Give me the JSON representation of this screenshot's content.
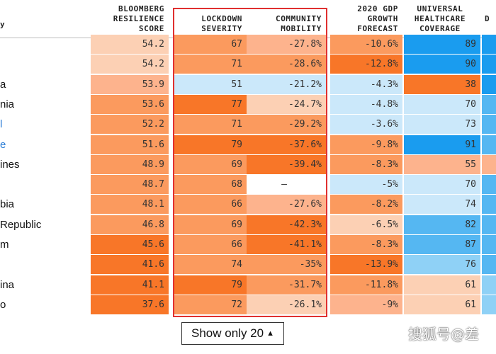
{
  "headers": {
    "country": "y",
    "score": [
      "BLOOMBERG",
      "RESILIENCE",
      "SCORE"
    ],
    "lockdown": [
      "LOCKDOWN",
      "SEVERITY"
    ],
    "mobility": [
      "COMMUNITY",
      "MOBILITY"
    ],
    "gdp": [
      "2020 GDP",
      "GROWTH",
      "FORECAST"
    ],
    "healthcare": [
      "UNIVERSAL",
      "HEALTHCARE",
      "COVERAGE"
    ],
    "partial": [
      "D"
    ]
  },
  "colors": {
    "peach_light": "#fcd0b4",
    "peach": "#fdb38d",
    "orange": "#fb9a5e",
    "orange_dark": "#f87628",
    "blue_light": "#cbe8fa",
    "blue_mid": "#8fd1f6",
    "blue": "#55b7f2",
    "blue_dark": "#1a9cef",
    "blank": "#ffffff",
    "highlight_box": "#e03030"
  },
  "rows": [
    {
      "name": "",
      "link": false,
      "score": "54.2",
      "score_c": "peach_light",
      "lockdown": "67",
      "lockdown_c": "orange",
      "mobility": "-27.8%",
      "mobility_c": "peach",
      "gdp": "-10.6%",
      "gdp_c": "orange",
      "health": "89",
      "health_c": "blue_dark",
      "partial_c": "blue_dark"
    },
    {
      "name": "",
      "link": false,
      "score": "54.2",
      "score_c": "peach_light",
      "lockdown": "71",
      "lockdown_c": "orange",
      "mobility": "-28.6%",
      "mobility_c": "orange",
      "gdp": "-12.8%",
      "gdp_c": "orange_dark",
      "health": "90",
      "health_c": "blue_dark",
      "partial_c": "blue_dark"
    },
    {
      "name": "a",
      "link": false,
      "score": "53.9",
      "score_c": "peach",
      "lockdown": "51",
      "lockdown_c": "blue_light",
      "mobility": "-21.2%",
      "mobility_c": "blue_light",
      "gdp": "-4.3%",
      "gdp_c": "blue_light",
      "health": "38",
      "health_c": "orange_dark",
      "partial_c": "blue_dark"
    },
    {
      "name": "nia",
      "link": false,
      "score": "53.6",
      "score_c": "orange",
      "lockdown": "77",
      "lockdown_c": "orange_dark",
      "mobility": "-24.7%",
      "mobility_c": "peach_light",
      "gdp": "-4.8%",
      "gdp_c": "blue_light",
      "health": "70",
      "health_c": "blue_light",
      "partial_c": "blue"
    },
    {
      "name": "l",
      "link": true,
      "score": "52.2",
      "score_c": "orange",
      "lockdown": "71",
      "lockdown_c": "orange",
      "mobility": "-29.2%",
      "mobility_c": "orange",
      "gdp": "-3.6%",
      "gdp_c": "blue_light",
      "health": "73",
      "health_c": "blue_light",
      "partial_c": "blue"
    },
    {
      "name": "e",
      "link": true,
      "score": "51.6",
      "score_c": "orange",
      "lockdown": "79",
      "lockdown_c": "orange_dark",
      "mobility": "-37.6%",
      "mobility_c": "orange_dark",
      "gdp": "-9.8%",
      "gdp_c": "orange",
      "health": "91",
      "health_c": "blue_dark",
      "partial_c": "blue"
    },
    {
      "name": "ines",
      "link": false,
      "score": "48.9",
      "score_c": "orange",
      "lockdown": "69",
      "lockdown_c": "orange",
      "mobility": "-39.4%",
      "mobility_c": "orange_dark",
      "gdp": "-8.3%",
      "gdp_c": "orange",
      "health": "55",
      "health_c": "peach",
      "partial_c": "peach"
    },
    {
      "name": "",
      "link": false,
      "score": "48.7",
      "score_c": "orange",
      "lockdown": "68",
      "lockdown_c": "orange",
      "mobility": "—",
      "mobility_c": "blank",
      "gdp": "-5%",
      "gdp_c": "blue_light",
      "health": "70",
      "health_c": "blue_light",
      "partial_c": "blue"
    },
    {
      "name": "bia",
      "link": false,
      "score": "48.1",
      "score_c": "orange",
      "lockdown": "66",
      "lockdown_c": "orange",
      "mobility": "-27.6%",
      "mobility_c": "peach",
      "gdp": "-8.2%",
      "gdp_c": "orange",
      "health": "74",
      "health_c": "blue_light",
      "partial_c": "blue"
    },
    {
      "name": "Republic",
      "link": false,
      "score": "46.8",
      "score_c": "orange",
      "lockdown": "69",
      "lockdown_c": "orange",
      "mobility": "-42.3%",
      "mobility_c": "orange_dark",
      "gdp": "-6.5%",
      "gdp_c": "peach_light",
      "health": "82",
      "health_c": "blue",
      "partial_c": "blue"
    },
    {
      "name": "m",
      "link": false,
      "score": "45.6",
      "score_c": "orange_dark",
      "lockdown": "66",
      "lockdown_c": "orange",
      "mobility": "-41.1%",
      "mobility_c": "orange_dark",
      "gdp": "-8.3%",
      "gdp_c": "orange",
      "health": "87",
      "health_c": "blue",
      "partial_c": "blue"
    },
    {
      "name": "",
      "link": false,
      "score": "41.6",
      "score_c": "orange_dark",
      "lockdown": "74",
      "lockdown_c": "orange",
      "mobility": "-35%",
      "mobility_c": "orange",
      "gdp": "-13.9%",
      "gdp_c": "orange_dark",
      "health": "76",
      "health_c": "blue_mid",
      "partial_c": "blue"
    },
    {
      "name": "ina",
      "link": false,
      "score": "41.1",
      "score_c": "orange_dark",
      "lockdown": "79",
      "lockdown_c": "orange_dark",
      "mobility": "-31.7%",
      "mobility_c": "orange",
      "gdp": "-11.8%",
      "gdp_c": "orange",
      "health": "61",
      "health_c": "peach_light",
      "partial_c": "blue_mid"
    },
    {
      "name": "o",
      "link": false,
      "score": "37.6",
      "score_c": "orange_dark",
      "lockdown": "72",
      "lockdown_c": "orange",
      "mobility": "-26.1%",
      "mobility_c": "peach_light",
      "gdp": "-9%",
      "gdp_c": "peach",
      "health": "61",
      "health_c": "peach_light",
      "partial_c": "blue_mid"
    }
  ],
  "button": {
    "label": "Show only 20",
    "icon": "triangle-up-icon",
    "glyph": "▲"
  },
  "watermark": "搜狐号@差"
}
